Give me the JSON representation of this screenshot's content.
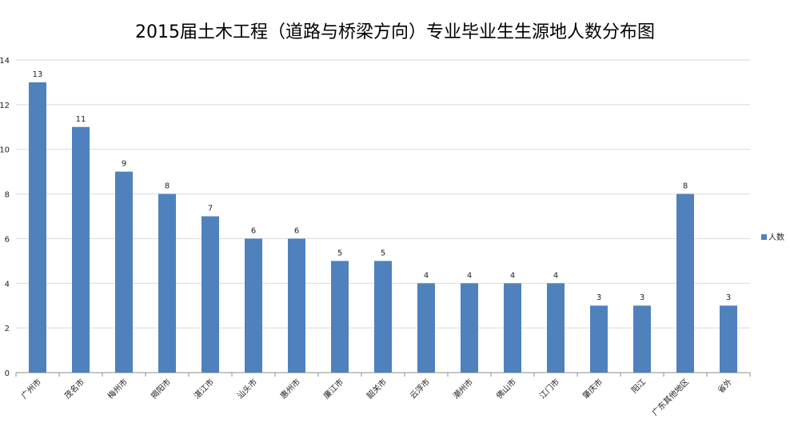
{
  "chart_data": {
    "type": "bar",
    "title": "2015届土木工程（道路与桥梁方向）专业毕业生生源地人数分布图",
    "xlabel": "",
    "ylabel": "",
    "categories": [
      "广州市",
      "茂名市",
      "梅州市",
      "揭阳市",
      "湛江市",
      "汕头市",
      "惠州市",
      "廉江市",
      "韶关市",
      "云浮市",
      "潮州市",
      "佛山市",
      "江门市",
      "肇庆市",
      "阳江",
      "广东其他地区",
      "省外"
    ],
    "series": [
      {
        "name": "人数",
        "values": [
          13,
          11,
          9,
          8,
          7,
          6,
          6,
          5,
          5,
          4,
          4,
          4,
          4,
          3,
          3,
          8,
          3
        ]
      }
    ],
    "ylim": [
      0,
      14
    ],
    "yticks": [
      "0",
      "2",
      "4",
      "6",
      "8",
      "10",
      "12",
      "14"
    ],
    "grid": true,
    "legend_position": "right",
    "bar_color": "#4F81BD",
    "grid_color": "#D9D9D9"
  }
}
